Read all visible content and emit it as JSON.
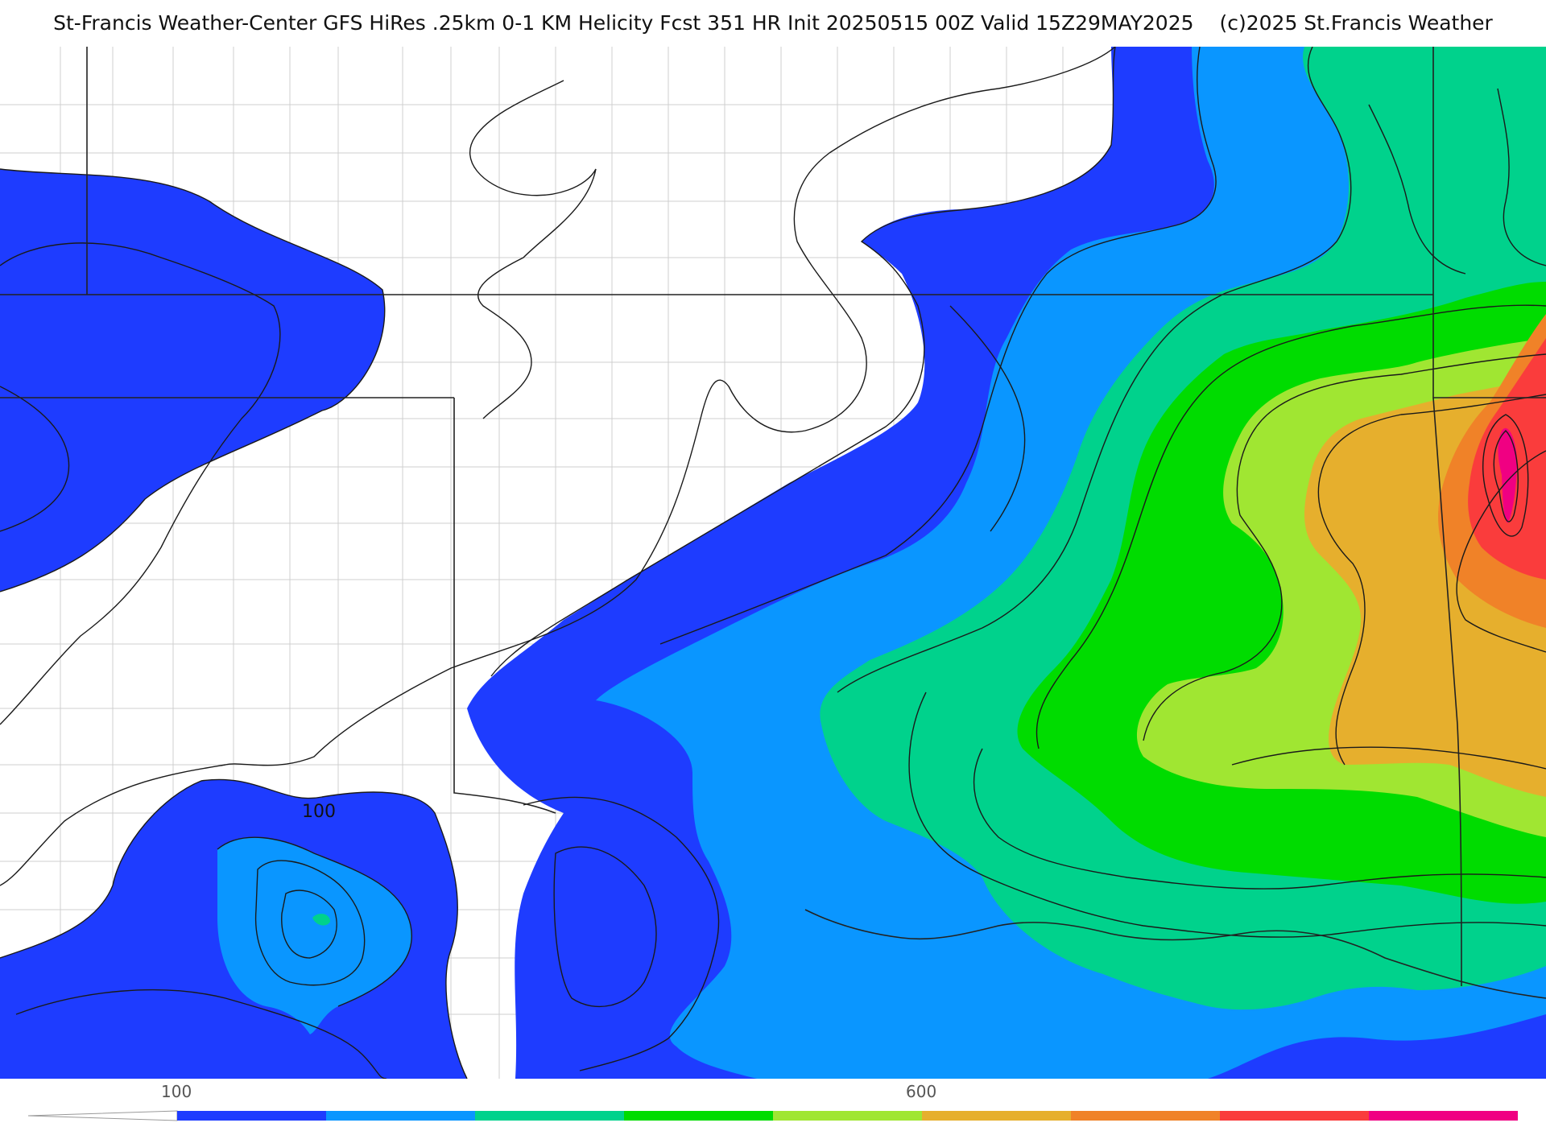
{
  "header": {
    "title": "St-Francis Weather-Center GFS HiRes .25km 0-1 KM Helicity Fcst 351 HR Init 20250515 00Z  Valid 15Z29MAY2025",
    "copyright": "(c)2025 St.Francis Weather"
  },
  "map": {
    "contour_label": "100"
  },
  "colorbar": {
    "tick_labels": [
      {
        "value": 100,
        "text": "100"
      },
      {
        "value": 600,
        "text": "600"
      }
    ],
    "colors": [
      "#1e3cff",
      "#0a96ff",
      "#00d28c",
      "#00dc00",
      "#a0e632",
      "#e6af2d",
      "#f08228",
      "#fa3c3c",
      "#f00082"
    ],
    "bin_step": 100,
    "min": 100,
    "max": 1000
  }
}
